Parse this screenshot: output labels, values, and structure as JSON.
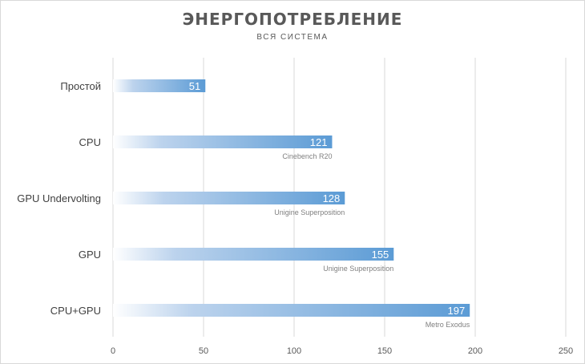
{
  "chart_data": {
    "type": "bar",
    "orientation": "horizontal",
    "title": "ЭНЕРГОПОТРЕБЛЕНИЕ",
    "subtitle": "ВСЯ СИСТЕМА",
    "categories": [
      "Простой",
      "CPU",
      "GPU Undervolting",
      "GPU",
      "CPU+GPU"
    ],
    "values": [
      51,
      121,
      128,
      155,
      197
    ],
    "annotations": [
      "",
      "Cinebench R20",
      "Unigine Superposition",
      "Unigine Superposition",
      "Metro Exodus"
    ],
    "x_ticks": [
      "0",
      "50",
      "100",
      "150",
      "200",
      "250"
    ],
    "xlim": [
      0,
      250
    ],
    "grid": true,
    "legend": "none",
    "bar_color": "#5b9bd5"
  }
}
